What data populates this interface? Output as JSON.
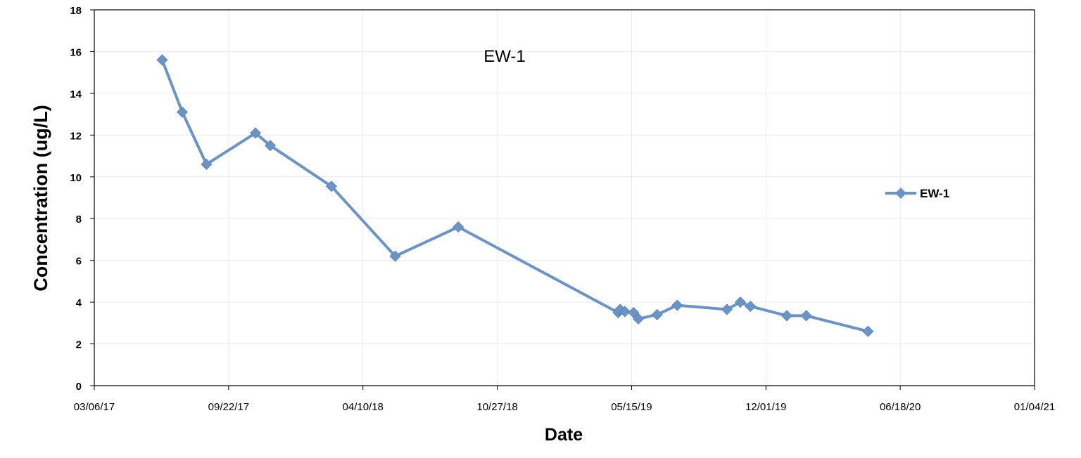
{
  "chart_data": {
    "type": "line",
    "title": "EW-1",
    "xlabel": "Date",
    "ylabel": "Concentration (ug/L)",
    "x_axis_type": "date",
    "xlim": [
      "2017-03-06",
      "2021-01-04"
    ],
    "ylim": [
      0,
      18
    ],
    "x_ticks": [
      "2017-03-06",
      "2017-09-22",
      "2018-04-10",
      "2018-10-27",
      "2019-05-15",
      "2019-12-01",
      "2020-06-18",
      "2021-01-04"
    ],
    "x_tick_labels": [
      "03/06/17",
      "09/22/17",
      "04/10/18",
      "10/27/18",
      "05/15/19",
      "12/01/19",
      "06/18/20",
      "01/04/21"
    ],
    "y_ticks": [
      0,
      2,
      4,
      6,
      8,
      10,
      12,
      14,
      16,
      18
    ],
    "y_tick_labels": [
      "0",
      "2",
      "4",
      "6",
      "8",
      "10",
      "12",
      "14",
      "16",
      "18"
    ],
    "grid": "vertical and horizontal, light",
    "legend_position": "right",
    "series": [
      {
        "name": "EW-1",
        "color": "#6a94c6",
        "marker": "diamond",
        "points": [
          {
            "x": "2017-06-15",
            "y": 15.6
          },
          {
            "x": "2017-07-15",
            "y": 13.1
          },
          {
            "x": "2017-08-20",
            "y": 10.6
          },
          {
            "x": "2017-11-01",
            "y": 12.1
          },
          {
            "x": "2017-11-23",
            "y": 11.5
          },
          {
            "x": "2018-02-22",
            "y": 9.55
          },
          {
            "x": "2018-05-28",
            "y": 6.2
          },
          {
            "x": "2018-08-30",
            "y": 7.6
          },
          {
            "x": "2019-04-25",
            "y": 3.5
          },
          {
            "x": "2019-04-28",
            "y": 3.65
          },
          {
            "x": "2019-05-05",
            "y": 3.55
          },
          {
            "x": "2019-05-18",
            "y": 3.5
          },
          {
            "x": "2019-05-25",
            "y": 3.2
          },
          {
            "x": "2019-06-22",
            "y": 3.4
          },
          {
            "x": "2019-07-22",
            "y": 3.85
          },
          {
            "x": "2019-10-04",
            "y": 3.65
          },
          {
            "x": "2019-10-24",
            "y": 4.0
          },
          {
            "x": "2019-11-08",
            "y": 3.8
          },
          {
            "x": "2020-01-01",
            "y": 3.35
          },
          {
            "x": "2020-01-30",
            "y": 3.35
          },
          {
            "x": "2020-05-01",
            "y": 2.6
          }
        ]
      }
    ]
  }
}
